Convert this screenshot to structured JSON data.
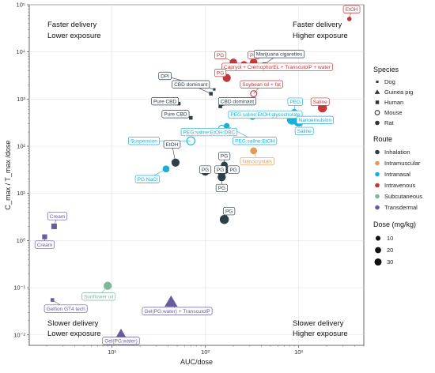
{
  "chart_data": {
    "type": "scatter",
    "xlabel": "AUC/dose",
    "ylabel": "C_max / T_max /dose",
    "xscale": "log",
    "yscale": "log",
    "xlim": [
      1.3,
      5000
    ],
    "ylim": [
      0.006,
      100000
    ],
    "x_ticks": [
      {
        "v": 10,
        "label": "10¹"
      },
      {
        "v": 100,
        "label": "10²"
      },
      {
        "v": 1000,
        "label": "10³"
      }
    ],
    "y_ticks": [
      {
        "v": 0.01,
        "label": "10⁻²"
      },
      {
        "v": 0.1,
        "label": "10⁻¹"
      },
      {
        "v": 1,
        "label": "10⁰"
      },
      {
        "v": 10,
        "label": "10¹"
      },
      {
        "v": 100,
        "label": "10²"
      },
      {
        "v": 1000,
        "label": "10³"
      },
      {
        "v": 10000,
        "label": "10⁴"
      },
      {
        "v": 100000,
        "label": "10⁵"
      }
    ],
    "grid": true,
    "quadrants": {
      "top_left": [
        "Faster delivery",
        "Lower exposure"
      ],
      "top_right": [
        "Faster delivery",
        "Higher exposure"
      ],
      "bottom_left": [
        "Slower delivery",
        "Lower exposure"
      ],
      "bottom_right": [
        "Slower delivery",
        "Higher exposure"
      ]
    },
    "legend": {
      "position": "right",
      "species_title": "Species",
      "species": [
        {
          "name": "Dog",
          "shape": "square-small"
        },
        {
          "name": "Guinea pig",
          "shape": "triangle"
        },
        {
          "name": "Human",
          "shape": "square"
        },
        {
          "name": "Mouse",
          "shape": "circle-open"
        },
        {
          "name": "Rat",
          "shape": "circle"
        }
      ],
      "route_title": "Route",
      "routes": [
        {
          "name": "Inhalation",
          "color": "#2d4048"
        },
        {
          "name": "Intramuscular",
          "color": "#e39a52"
        },
        {
          "name": "Intranasal",
          "color": "#1bb0d3"
        },
        {
          "name": "Intravenous",
          "color": "#c0393b"
        },
        {
          "name": "Subcutaneous",
          "color": "#7fb79a"
        },
        {
          "name": "Transdermal",
          "color": "#6a5b9e"
        }
      ],
      "dose_title": "Dose (mg/kg)",
      "doses": [
        10,
        20,
        30
      ]
    },
    "points": [
      {
        "label": "EtOH",
        "x": 3500,
        "y": 50000,
        "route": "Intravenous",
        "species": "Rat",
        "dose": 1,
        "lx": 3700,
        "ly": 80000
      },
      {
        "label": "PG",
        "x": 200,
        "y": 6000,
        "route": "Intravenous",
        "species": "Rat",
        "dose": 8,
        "lx": 145,
        "ly": 8500
      },
      {
        "label": "PG",
        "x": 330,
        "y": 6000,
        "route": "Intravenous",
        "species": "Rat",
        "dose": 8,
        "lx": 330,
        "ly": 8500
      },
      {
        "label": "Marijuana cigarettes",
        "x": 430,
        "y": 5500,
        "route": "Inhalation",
        "species": "Human",
        "dose": 1,
        "lx": 620,
        "ly": 9000
      },
      {
        "label": "Capryol + CremophorEL + TranscutolP + water",
        "x": 260,
        "y": 5400,
        "route": "Intravenous",
        "species": "Rat",
        "dose": 6,
        "lx": 590,
        "ly": 4800
      },
      {
        "label": "PG",
        "x": 170,
        "y": 2800,
        "route": "Intravenous",
        "species": "Rat",
        "dose": 10,
        "lx": 145,
        "ly": 3600
      },
      {
        "label": "Soybean oil + fat",
        "x": 330,
        "y": 1300,
        "route": "Intravenous",
        "species": "Mouse",
        "dose": 4,
        "lx": 400,
        "ly": 2050
      },
      {
        "label": "DPI",
        "x": 125,
        "y": 1600,
        "route": "Inhalation",
        "species": "Dog",
        "dose": 1,
        "lx": 37,
        "ly": 3100
      },
      {
        "label": "CBD dominant",
        "x": 115,
        "y": 1300,
        "route": "Inhalation",
        "species": "Human",
        "dose": 1,
        "lx": 70,
        "ly": 2050
      },
      {
        "label": "CBD dominant",
        "x": 145,
        "y": 700,
        "route": "Inhalation",
        "species": "Human",
        "dose": 1,
        "lx": 220,
        "ly": 900
      },
      {
        "label": "Pure CBD",
        "x": 52,
        "y": 800,
        "route": "Inhalation",
        "species": "Human",
        "dose": 1,
        "lx": 37,
        "ly": 900
      },
      {
        "label": "Pure CBD",
        "x": 70,
        "y": 400,
        "route": "Inhalation",
        "species": "Human",
        "dose": 1,
        "lx": 48,
        "ly": 480
      },
      {
        "label": "PEG",
        "x": 900,
        "y": 520,
        "route": "Intranasal",
        "species": "Rat",
        "dose": 6,
        "lx": 920,
        "ly": 880
      },
      {
        "label": "Saline",
        "x": 1800,
        "y": 650,
        "route": "Intravenous",
        "species": "Rat",
        "dose": 14,
        "lx": 1700,
        "ly": 880
      },
      {
        "label": "PEG:saline:EtOH:glycocholate",
        "x": 320,
        "y": 420,
        "route": "Intranasal",
        "species": "Rat",
        "dose": 4,
        "lx": 440,
        "ly": 470
      },
      {
        "label": "Nanoemulsion",
        "x": 850,
        "y": 370,
        "route": "Intranasal",
        "species": "Rat",
        "dose": 20,
        "lx": 1500,
        "ly": 360
      },
      {
        "label": "Saline",
        "x": 1000,
        "y": 340,
        "route": "Intranasal",
        "species": "Rat",
        "dose": 22,
        "lx": 1150,
        "ly": 210
      },
      {
        "label": "PEG:saline:EtOH:DBC",
        "x": 150,
        "y": 240,
        "route": "Intranasal",
        "species": "Mouse",
        "dose": 4,
        "lx": 110,
        "ly": 200
      },
      {
        "label": "Suspension",
        "x": 70,
        "y": 130,
        "route": "Intranasal",
        "species": "Mouse",
        "dose": 10,
        "lx": 22,
        "ly": 130
      },
      {
        "label": "PEG:saline:EtOH",
        "x": 170,
        "y": 270,
        "route": "Intranasal",
        "species": "Rat",
        "dose": 3,
        "lx": 340,
        "ly": 130
      },
      {
        "label": "EtOH",
        "x": 48,
        "y": 45,
        "route": "Inhalation",
        "species": "Rat",
        "dose": 10,
        "lx": 44,
        "ly": 110
      },
      {
        "label": "PG",
        "x": 160,
        "y": 40,
        "route": "Inhalation",
        "species": "Rat",
        "dose": 6,
        "lx": 160,
        "ly": 62
      },
      {
        "label": "Nanocrystals",
        "x": 330,
        "y": 80,
        "route": "Intramuscular",
        "species": "Rat",
        "dose": 6,
        "lx": 360,
        "ly": 48
      },
      {
        "label": "PG:NaCl",
        "x": 38,
        "y": 33,
        "route": "Intranasal",
        "species": "Rat",
        "dose": 6,
        "lx": 24,
        "ly": 20
      },
      {
        "label": "PG",
        "x": 100,
        "y": 29,
        "route": "Inhalation",
        "species": "Rat",
        "dose": 10,
        "lx": 100,
        "ly": 32
      },
      {
        "label": "PG",
        "x": 150,
        "y": 28,
        "route": "Inhalation",
        "species": "Rat",
        "dose": 10,
        "lx": 145,
        "ly": 32
      },
      {
        "label": "PG",
        "x": 165,
        "y": 32,
        "route": "Inhalation",
        "species": "Rat",
        "dose": 10,
        "lx": 200,
        "ly": 32
      },
      {
        "label": "PG",
        "x": 150,
        "y": 22,
        "route": "Inhalation",
        "species": "Rat",
        "dose": 10,
        "lx": 150,
        "ly": 13
      },
      {
        "label": "PG",
        "x": 160,
        "y": 2.8,
        "route": "Inhalation",
        "species": "Rat",
        "dose": 14,
        "lx": 180,
        "ly": 4.2
      },
      {
        "label": "Cream",
        "x": 2.4,
        "y": 2.0,
        "route": "Transdermal",
        "species": "Human",
        "dose": 6,
        "lx": 2.6,
        "ly": 3.3
      },
      {
        "label": "Cream",
        "x": 1.9,
        "y": 1.2,
        "route": "Transdermal",
        "species": "Human",
        "dose": 4,
        "lx": 1.9,
        "ly": 0.82
      },
      {
        "label": "Sunflower oil",
        "x": 9,
        "y": 0.11,
        "route": "Subcutaneous",
        "species": "Rat",
        "dose": 10,
        "lx": 7.2,
        "ly": 0.065
      },
      {
        "label": "Gel(PG:water) + TranscutolP",
        "x": 43,
        "y": 0.05,
        "route": "Transdermal",
        "species": "Guinea pig",
        "dose": 24,
        "lx": 50,
        "ly": 0.032
      },
      {
        "label": "Gelfion GT4 tech",
        "x": 2.3,
        "y": 0.055,
        "route": "Transdermal",
        "species": "Human",
        "dose": 1,
        "lx": 3.2,
        "ly": 0.036
      },
      {
        "label": "Gel(PG:water)",
        "x": 12.5,
        "y": 0.01,
        "route": "Transdermal",
        "species": "Guinea pig",
        "dose": 22,
        "lx": 12.5,
        "ly": 0.0075
      }
    ]
  }
}
